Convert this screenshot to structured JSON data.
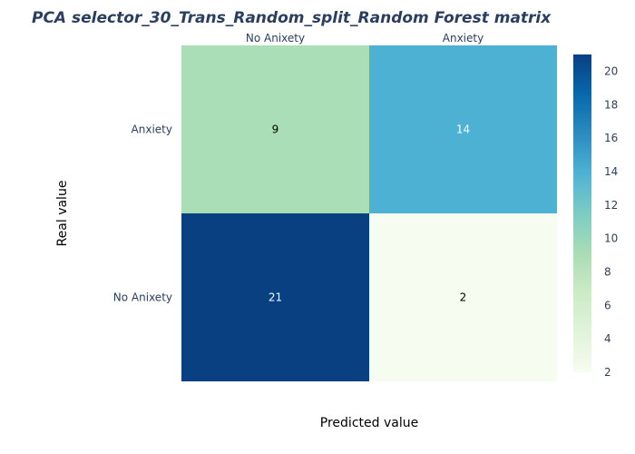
{
  "chart_data": {
    "type": "heatmap",
    "title": "PCA selector_30_Trans_Random_split_Random Forest matrix",
    "xlabel": "Predicted value",
    "ylabel": "Real value",
    "x_categories": [
      "No Anixety",
      "Anxiety"
    ],
    "y_categories": [
      "Anxiety",
      "No Anixety"
    ],
    "values": [
      [
        9,
        14
      ],
      [
        21,
        2
      ]
    ],
    "colorscale": "GnBu",
    "colorbar": {
      "min": 2,
      "max": 21,
      "ticks": [
        2,
        4,
        6,
        8,
        10,
        12,
        14,
        16,
        18,
        20
      ]
    },
    "x_axis_position": "top"
  }
}
